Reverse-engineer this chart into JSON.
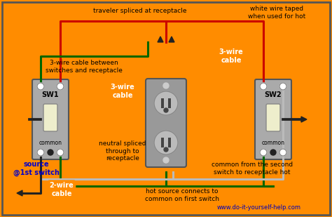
{
  "bg_color": "#FFFF99",
  "title_text": "",
  "website": "www.do-it-yourself-help.com",
  "labels": {
    "traveler": "traveler spliced at receptacle",
    "three_wire_left": "3-wire cable between\nswitches and receptacle",
    "three_wire_badge1": "3-wire\ncable",
    "three_wire_badge2": "3-wire\ncable",
    "two_wire_badge": "2-wire\ncable",
    "neutral": "neutral spliced\nthrough to\nreceptacle",
    "common_sw2": "common from the second\nswitch to receptacle hot",
    "hot_source": "hot source connects to\ncommon on first switch",
    "source": "source\n@1st switch",
    "white_wire": "white wire taped\nwhen used for hot",
    "sw1_label": "SW1",
    "sw2_label": "SW2",
    "sw1_common": "common",
    "sw2_common": "common"
  },
  "colors": {
    "wire_red": "#CC0000",
    "wire_green": "#006600",
    "wire_white": "#BBBBBB",
    "wire_black": "#222222",
    "switch_gray": "#AAAAAA",
    "outlet_gray": "#999999",
    "badge_orange": "#FF8C00",
    "label_blue": "#0000CC",
    "label_black": "#000000",
    "website_blue": "#0000BB"
  }
}
